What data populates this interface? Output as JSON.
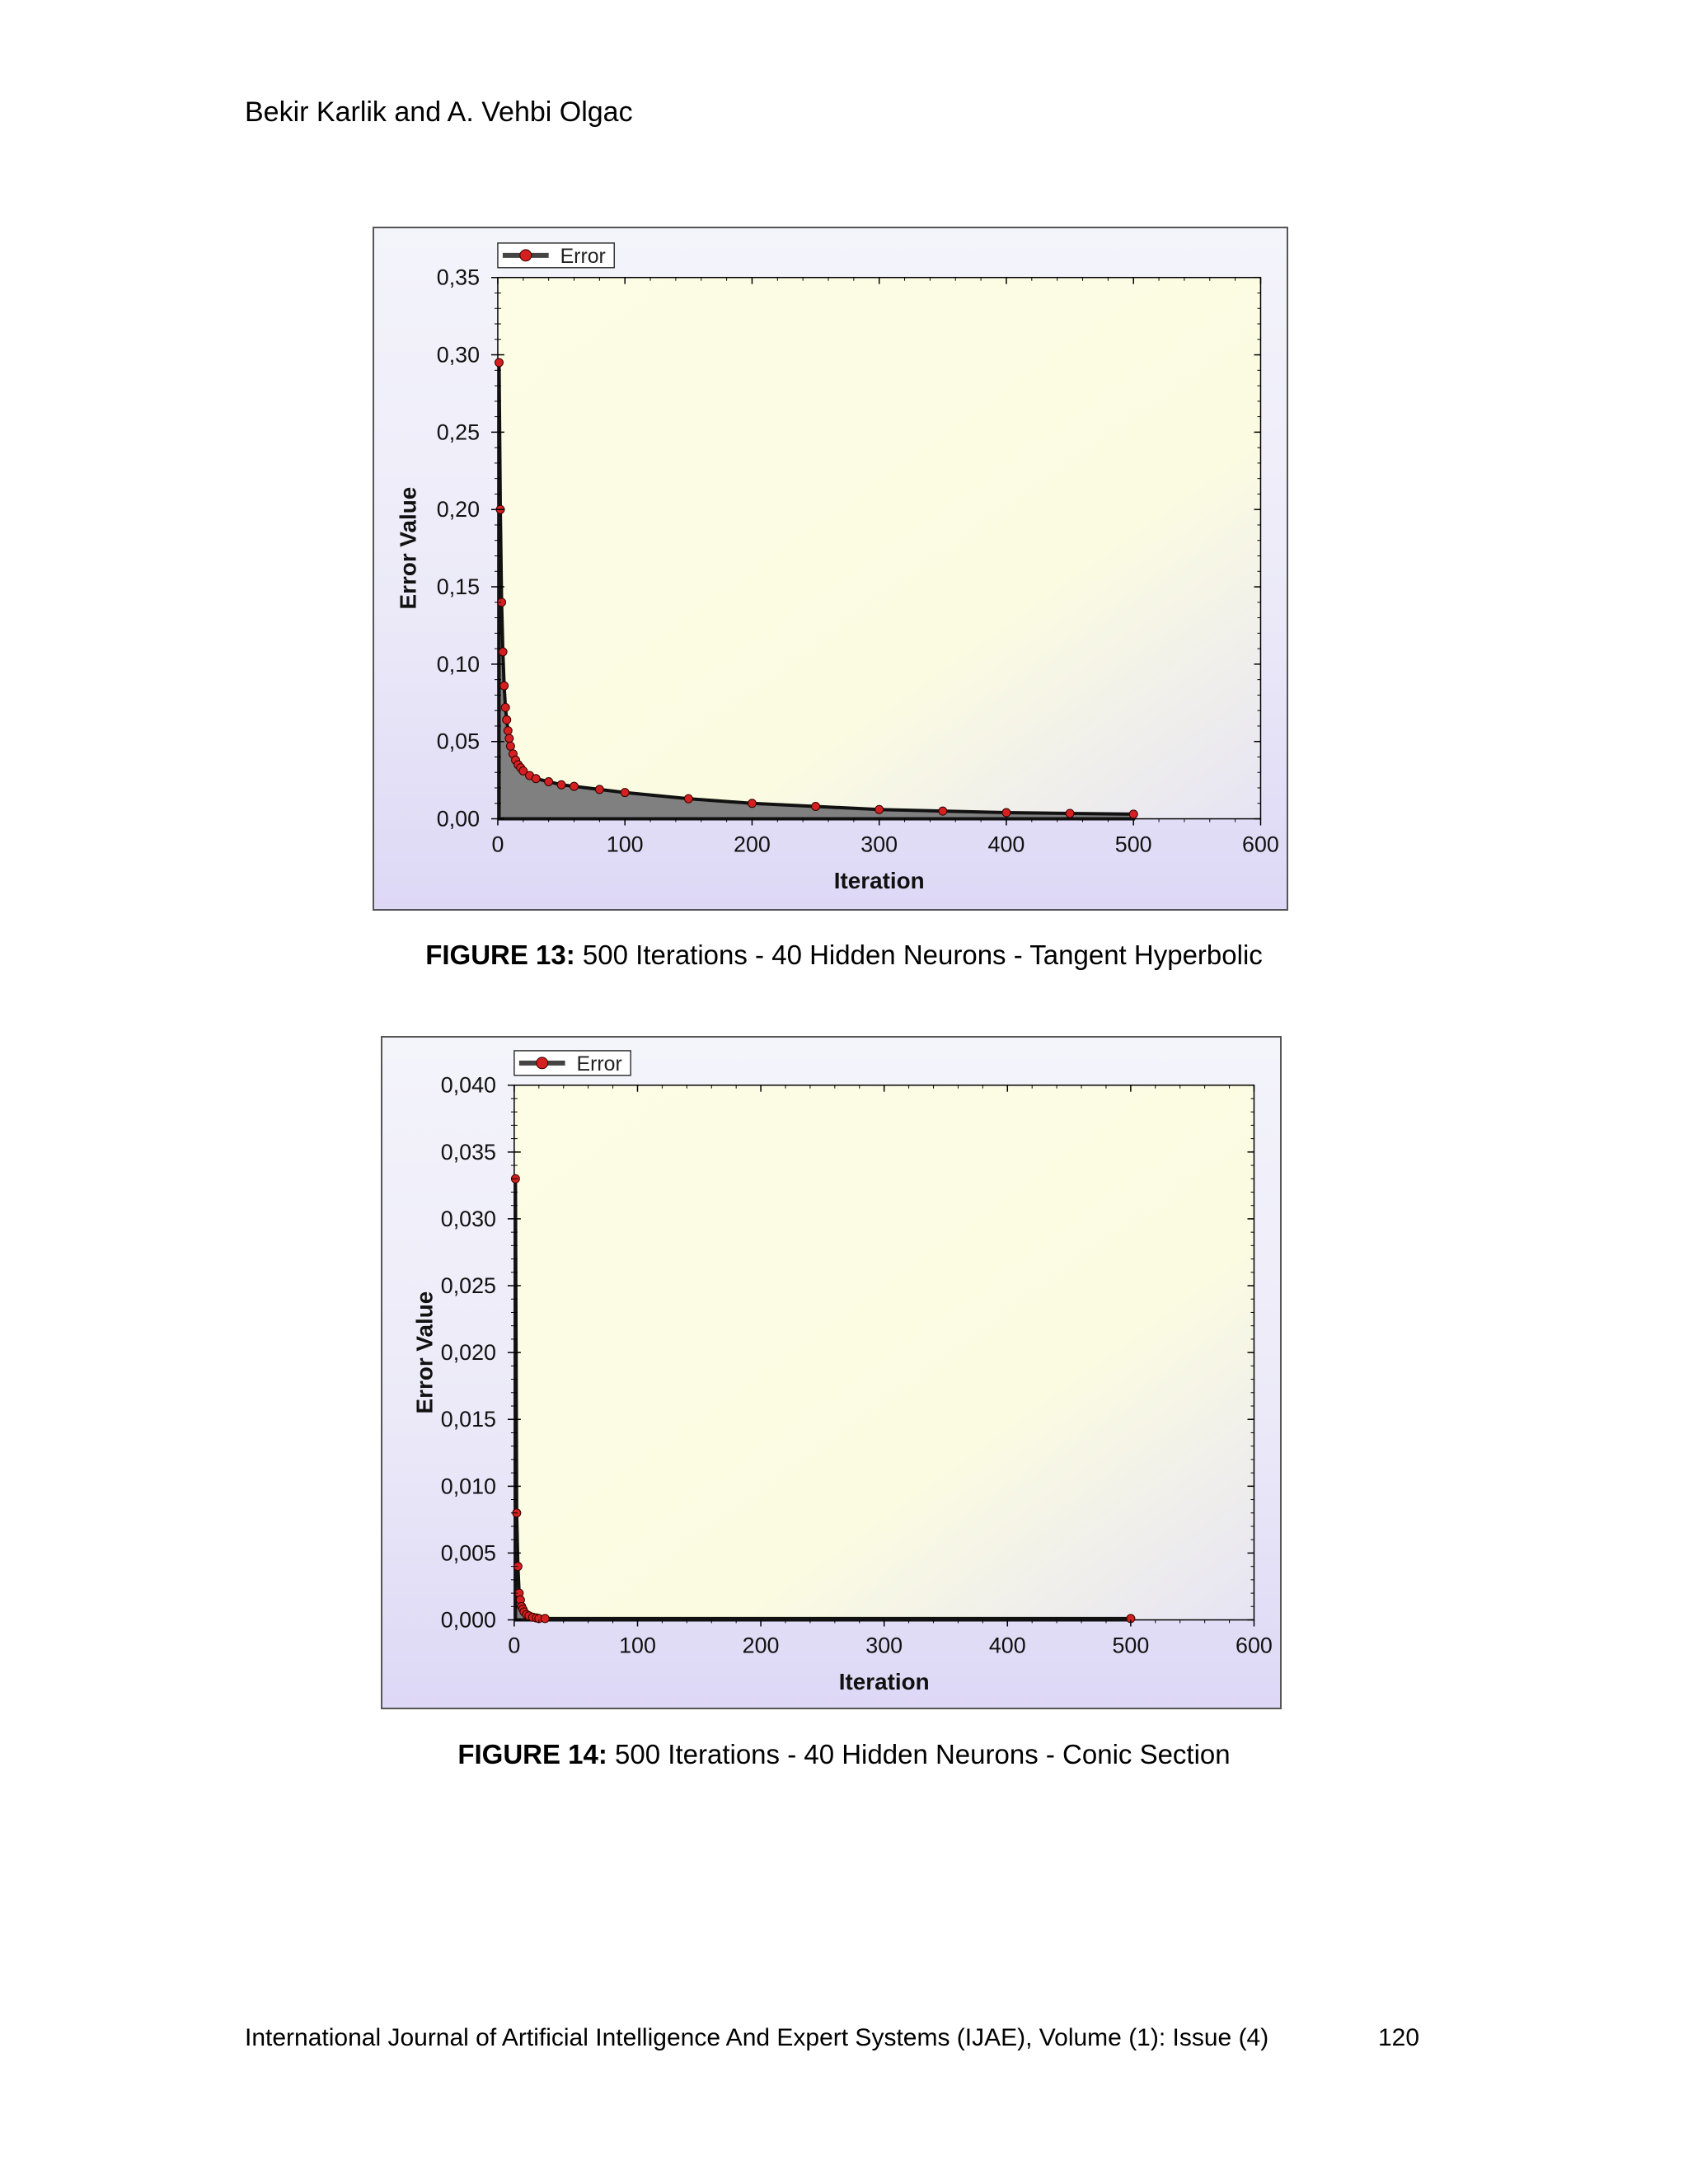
{
  "header": {
    "authors": "Bekir Karlik and A. Vehbi Olgac"
  },
  "figures": [
    {
      "caption_label": "FIGURE 13:",
      "caption_text": " 500 Iterations - 40 Hidden Neurons - Tangent Hyperbolic"
    },
    {
      "caption_label": "FIGURE 14:",
      "caption_text": " 500 Iterations - 40 Hidden Neurons - Conic Section"
    }
  ],
  "footer": {
    "journal": "International Journal of Artificial Intelligence And Expert Systems (IJAE), Volume (1): Issue (4)",
    "page": "120"
  },
  "colors": {
    "marker": "#d42020",
    "fill": "#808080",
    "plot_bg": "#fbfbe2"
  },
  "chart_data": [
    {
      "type": "area",
      "xlabel": "Iteration",
      "ylabel": "Error Value",
      "legend": "Error",
      "legend_position": "top-left",
      "xlim": [
        0,
        600
      ],
      "ylim": [
        0,
        0.35
      ],
      "xticks": [
        0,
        100,
        200,
        300,
        400,
        500,
        600
      ],
      "xtick_labels": [
        "0",
        "100",
        "200",
        "300",
        "400",
        "500",
        "600"
      ],
      "yticks": [
        0,
        0.05,
        0.1,
        0.15,
        0.2,
        0.25,
        0.3,
        0.35
      ],
      "ytick_labels": [
        "0,00",
        "0,05",
        "0,10",
        "0,15",
        "0,20",
        "0,25",
        "0,30",
        "0,35"
      ],
      "grid": false,
      "series": [
        {
          "name": "Error",
          "x": [
            1,
            2,
            3,
            4,
            5,
            6,
            7,
            8,
            9,
            10,
            12,
            14,
            16,
            18,
            20,
            25,
            30,
            40,
            50,
            60,
            80,
            100,
            150,
            200,
            250,
            300,
            350,
            400,
            450,
            500
          ],
          "y": [
            0.295,
            0.2,
            0.14,
            0.108,
            0.086,
            0.072,
            0.064,
            0.057,
            0.052,
            0.047,
            0.042,
            0.038,
            0.035,
            0.033,
            0.031,
            0.028,
            0.026,
            0.024,
            0.022,
            0.021,
            0.019,
            0.017,
            0.013,
            0.01,
            0.008,
            0.006,
            0.005,
            0.004,
            0.0035,
            0.003
          ]
        }
      ]
    },
    {
      "type": "area",
      "xlabel": "Iteration",
      "ylabel": "Error Value",
      "legend": "Error",
      "legend_position": "top-left",
      "xlim": [
        0,
        600
      ],
      "ylim": [
        0,
        0.04
      ],
      "xticks": [
        0,
        100,
        200,
        300,
        400,
        500,
        600
      ],
      "xtick_labels": [
        "0",
        "100",
        "200",
        "300",
        "400",
        "500",
        "600"
      ],
      "yticks": [
        0,
        0.005,
        0.01,
        0.015,
        0.02,
        0.025,
        0.03,
        0.035,
        0.04
      ],
      "ytick_labels": [
        "0,000",
        "0,005",
        "0,010",
        "0,015",
        "0,020",
        "0,025",
        "0,030",
        "0,035",
        "0,040"
      ],
      "grid": false,
      "series": [
        {
          "name": "Error",
          "x": [
            1,
            2,
            3,
            4,
            5,
            6,
            7,
            8,
            10,
            12,
            15,
            18,
            20,
            25,
            500
          ],
          "y": [
            0.033,
            0.008,
            0.004,
            0.002,
            0.0015,
            0.001,
            0.0008,
            0.0006,
            0.0004,
            0.0003,
            0.0002,
            0.00015,
            0.0001,
            0.0001,
            0.0001
          ]
        }
      ]
    }
  ]
}
